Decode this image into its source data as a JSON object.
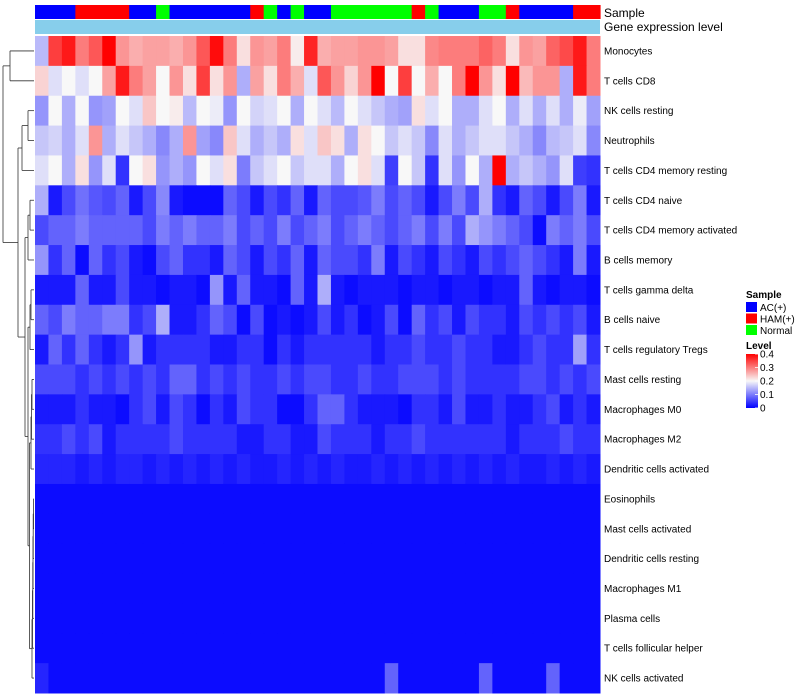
{
  "chart_data": {
    "type": "heatmap",
    "title": "",
    "annotation_labels": {
      "sample": "Sample",
      "expression": "Gene expression level"
    },
    "sample_groups": [
      "AC(+)",
      "AC(+)",
      "AC(+)",
      "HAM(+)",
      "HAM(+)",
      "HAM(+)",
      "HAM(+)",
      "AC(+)",
      "AC(+)",
      "Normal",
      "AC(+)",
      "AC(+)",
      "AC(+)",
      "AC(+)",
      "AC(+)",
      "AC(+)",
      "HAM(+)",
      "Normal",
      "AC(+)",
      "Normal",
      "AC(+)",
      "AC(+)",
      "Normal",
      "Normal",
      "Normal",
      "Normal",
      "Normal",
      "Normal",
      "HAM(+)",
      "Normal",
      "AC(+)",
      "AC(+)",
      "AC(+)",
      "Normal",
      "Normal",
      "HAM(+)",
      "AC(+)",
      "AC(+)",
      "AC(+)",
      "AC(+)",
      "HAM(+)",
      "HAM(+)"
    ],
    "rows": [
      "Monocytes",
      "T cells CD8",
      "NK cells resting",
      "Neutrophils",
      "T cells CD4 memory resting",
      "T cells CD4 naive",
      "T cells CD4 memory activated",
      "B cells memory",
      "T cells gamma delta",
      "B cells naive",
      "T cells regulatory  Tregs",
      "Mast cells resting",
      "Macrophages M0",
      "Macrophages M2",
      "Dendritic cells activated",
      "Eosinophils",
      "Mast cells activated",
      "Dendritic cells resting",
      "Macrophages M1",
      "Plasma cells",
      "T cells follicular helper",
      "NK cells activated"
    ],
    "values": [
      [
        0.15,
        0.35,
        0.38,
        0.3,
        0.33,
        0.4,
        0.28,
        0.26,
        0.27,
        0.27,
        0.26,
        0.28,
        0.33,
        0.39,
        0.3,
        0.22,
        0.28,
        0.27,
        0.3,
        0.21,
        0.37,
        0.26,
        0.27,
        0.27,
        0.28,
        0.28,
        0.27,
        0.22,
        0.22,
        0.29,
        0.3,
        0.3,
        0.3,
        0.32,
        0.3,
        0.22,
        0.28,
        0.27,
        0.32,
        0.34,
        0.38,
        0.3
      ],
      [
        0.23,
        0.18,
        0.2,
        0.18,
        0.2,
        0.27,
        0.38,
        0.3,
        0.27,
        0.2,
        0.28,
        0.22,
        0.35,
        0.22,
        0.28,
        0.14,
        0.27,
        0.22,
        0.3,
        0.26,
        0.18,
        0.33,
        0.28,
        0.23,
        0.28,
        0.4,
        0.2,
        0.35,
        0.2,
        0.26,
        0.2,
        0.3,
        0.4,
        0.28,
        0.22,
        0.4,
        0.25,
        0.28,
        0.28,
        0.14,
        0.38,
        0.3
      ],
      [
        0.12,
        0.2,
        0.14,
        0.2,
        0.12,
        0.13,
        0.2,
        0.18,
        0.24,
        0.2,
        0.21,
        0.15,
        0.2,
        0.19,
        0.12,
        0.2,
        0.17,
        0.18,
        0.2,
        0.14,
        0.2,
        0.18,
        0.15,
        0.2,
        0.18,
        0.16,
        0.14,
        0.13,
        0.22,
        0.18,
        0.2,
        0.14,
        0.14,
        0.18,
        0.2,
        0.14,
        0.18,
        0.14,
        0.18,
        0.14,
        0.19,
        0.13
      ],
      [
        0.16,
        0.17,
        0.14,
        0.18,
        0.28,
        0.14,
        0.18,
        0.16,
        0.14,
        0.11,
        0.14,
        0.28,
        0.13,
        0.11,
        0.24,
        0.18,
        0.14,
        0.16,
        0.14,
        0.22,
        0.18,
        0.24,
        0.22,
        0.14,
        0.22,
        0.2,
        0.16,
        0.18,
        0.16,
        0.11,
        0.18,
        0.14,
        0.16,
        0.18,
        0.18,
        0.16,
        0.14,
        0.11,
        0.15,
        0.16,
        0.18,
        0.11
      ],
      [
        0.18,
        0.2,
        0.14,
        0.22,
        0.12,
        0.18,
        0.04,
        0.2,
        0.22,
        0.12,
        0.14,
        0.12,
        0.2,
        0.18,
        0.22,
        0.1,
        0.16,
        0.18,
        0.2,
        0.16,
        0.18,
        0.18,
        0.14,
        0.2,
        0.22,
        0.18,
        0.05,
        0.2,
        0.16,
        0.04,
        0.18,
        0.12,
        0.2,
        0.14,
        0.4,
        0.14,
        0.16,
        0.14,
        0.12,
        0.18,
        0.05,
        0.04
      ],
      [
        0.14,
        0.02,
        0.06,
        0.09,
        0.07,
        0.06,
        0.08,
        0.02,
        0.06,
        0.11,
        0.02,
        0.01,
        0.01,
        0.01,
        0.08,
        0.06,
        0.02,
        0.06,
        0.04,
        0.08,
        0.02,
        0.08,
        0.06,
        0.06,
        0.07,
        0.1,
        0.06,
        0.08,
        0.06,
        0.02,
        0.06,
        0.1,
        0.06,
        0.14,
        0.04,
        0.02,
        0.08,
        0.06,
        0.02,
        0.06,
        0.1,
        0.02
      ],
      [
        0.06,
        0.08,
        0.08,
        0.1,
        0.08,
        0.08,
        0.08,
        0.08,
        0.06,
        0.1,
        0.08,
        0.1,
        0.08,
        0.08,
        0.1,
        0.06,
        0.08,
        0.06,
        0.1,
        0.06,
        0.08,
        0.1,
        0.06,
        0.08,
        0.1,
        0.08,
        0.06,
        0.08,
        0.1,
        0.06,
        0.1,
        0.06,
        0.14,
        0.12,
        0.1,
        0.08,
        0.06,
        0.01,
        0.1,
        0.08,
        0.1,
        0.06
      ],
      [
        0.12,
        0.04,
        0.08,
        0.01,
        0.08,
        0.04,
        0.06,
        0.02,
        0.01,
        0.06,
        0.08,
        0.04,
        0.04,
        0.02,
        0.08,
        0.06,
        0.02,
        0.06,
        0.04,
        0.08,
        0.02,
        0.08,
        0.06,
        0.06,
        0.04,
        0.1,
        0.02,
        0.06,
        0.04,
        0.02,
        0.06,
        0.04,
        0.02,
        0.06,
        0.04,
        0.06,
        0.08,
        0.06,
        0.04,
        0.02,
        0.1,
        0.02
      ],
      [
        0.02,
        0.02,
        0.02,
        0.08,
        0.02,
        0.02,
        0.06,
        0.02,
        0.02,
        0.01,
        0.02,
        0.02,
        0.01,
        0.12,
        0.02,
        0.08,
        0.02,
        0.02,
        0.01,
        0.08,
        0.02,
        0.14,
        0.02,
        0.01,
        0.02,
        0.02,
        0.02,
        0.01,
        0.02,
        0.02,
        0.01,
        0.02,
        0.02,
        0.01,
        0.02,
        0.02,
        0.08,
        0.02,
        0.01,
        0.02,
        0.02,
        0.01
      ],
      [
        0.08,
        0.06,
        0.1,
        0.08,
        0.08,
        0.1,
        0.1,
        0.04,
        0.06,
        0.14,
        0.02,
        0.02,
        0.04,
        0.08,
        0.06,
        0.01,
        0.06,
        0.01,
        0.02,
        0.01,
        0.02,
        0.06,
        0.02,
        0.04,
        0.01,
        0.02,
        0.06,
        0.01,
        0.08,
        0.04,
        0.06,
        0.02,
        0.06,
        0.04,
        0.04,
        0.02,
        0.06,
        0.04,
        0.06,
        0.04,
        0.06,
        0.02
      ],
      [
        0.02,
        0.08,
        0.04,
        0.08,
        0.04,
        0.02,
        0.04,
        0.12,
        0.02,
        0.04,
        0.04,
        0.04,
        0.04,
        0.02,
        0.02,
        0.04,
        0.04,
        0.01,
        0.04,
        0.02,
        0.04,
        0.04,
        0.04,
        0.04,
        0.04,
        0.02,
        0.04,
        0.04,
        0.06,
        0.04,
        0.04,
        0.06,
        0.04,
        0.04,
        0.02,
        0.02,
        0.04,
        0.06,
        0.04,
        0.04,
        0.13,
        0.04
      ],
      [
        0.06,
        0.06,
        0.06,
        0.04,
        0.06,
        0.04,
        0.06,
        0.04,
        0.06,
        0.04,
        0.08,
        0.08,
        0.04,
        0.06,
        0.04,
        0.06,
        0.04,
        0.04,
        0.06,
        0.04,
        0.06,
        0.06,
        0.04,
        0.04,
        0.06,
        0.04,
        0.04,
        0.06,
        0.06,
        0.06,
        0.04,
        0.06,
        0.04,
        0.04,
        0.04,
        0.04,
        0.06,
        0.06,
        0.04,
        0.06,
        0.04,
        0.06
      ],
      [
        0.02,
        0.02,
        0.02,
        0.04,
        0.02,
        0.02,
        0.01,
        0.04,
        0.06,
        0.02,
        0.06,
        0.04,
        0.01,
        0.04,
        0.02,
        0.06,
        0.04,
        0.04,
        0.01,
        0.01,
        0.04,
        0.08,
        0.08,
        0.04,
        0.02,
        0.02,
        0.02,
        0.01,
        0.04,
        0.04,
        0.02,
        0.06,
        0.02,
        0.02,
        0.04,
        0.02,
        0.02,
        0.04,
        0.06,
        0.02,
        0.04,
        0.02
      ],
      [
        0.04,
        0.04,
        0.06,
        0.04,
        0.06,
        0.02,
        0.04,
        0.04,
        0.04,
        0.04,
        0.06,
        0.04,
        0.04,
        0.04,
        0.04,
        0.02,
        0.02,
        0.04,
        0.04,
        0.02,
        0.02,
        0.06,
        0.04,
        0.04,
        0.04,
        0.02,
        0.04,
        0.04,
        0.06,
        0.04,
        0.04,
        0.04,
        0.04,
        0.04,
        0.04,
        0.02,
        0.04,
        0.04,
        0.04,
        0.06,
        0.04,
        0.04
      ],
      [
        0.03,
        0.03,
        0.03,
        0.02,
        0.03,
        0.02,
        0.03,
        0.03,
        0.02,
        0.03,
        0.02,
        0.03,
        0.02,
        0.03,
        0.02,
        0.03,
        0.02,
        0.02,
        0.03,
        0.02,
        0.03,
        0.02,
        0.03,
        0.02,
        0.02,
        0.03,
        0.02,
        0.03,
        0.02,
        0.03,
        0.02,
        0.03,
        0.02,
        0.03,
        0.02,
        0.03,
        0.02,
        0.02,
        0.03,
        0.02,
        0.03,
        0.02
      ],
      [
        0.01,
        0.01,
        0.01,
        0.01,
        0.01,
        0.01,
        0.01,
        0.01,
        0.01,
        0.01,
        0.01,
        0.01,
        0.01,
        0.01,
        0.01,
        0.01,
        0.01,
        0.01,
        0.01,
        0.01,
        0.01,
        0.01,
        0.01,
        0.01,
        0.01,
        0.01,
        0.01,
        0.01,
        0.01,
        0.01,
        0.01,
        0.01,
        0.01,
        0.01,
        0.01,
        0.01,
        0.01,
        0.01,
        0.01,
        0.01,
        0.01,
        0.01
      ],
      [
        0.01,
        0.01,
        0.01,
        0.01,
        0.01,
        0.01,
        0.01,
        0.01,
        0.01,
        0.01,
        0.01,
        0.01,
        0.01,
        0.01,
        0.01,
        0.01,
        0.01,
        0.01,
        0.01,
        0.01,
        0.01,
        0.01,
        0.01,
        0.01,
        0.01,
        0.01,
        0.01,
        0.01,
        0.01,
        0.01,
        0.01,
        0.01,
        0.01,
        0.01,
        0.01,
        0.01,
        0.01,
        0.01,
        0.01,
        0.01,
        0.01,
        0.01
      ],
      [
        0.01,
        0.01,
        0.01,
        0.01,
        0.01,
        0.01,
        0.01,
        0.01,
        0.01,
        0.01,
        0.01,
        0.01,
        0.01,
        0.01,
        0.01,
        0.01,
        0.01,
        0.01,
        0.01,
        0.01,
        0.01,
        0.01,
        0.01,
        0.01,
        0.01,
        0.01,
        0.01,
        0.01,
        0.01,
        0.01,
        0.01,
        0.01,
        0.01,
        0.01,
        0.01,
        0.01,
        0.01,
        0.01,
        0.01,
        0.01,
        0.01,
        0.01
      ],
      [
        0.01,
        0.01,
        0.01,
        0.01,
        0.01,
        0.01,
        0.01,
        0.01,
        0.01,
        0.01,
        0.01,
        0.01,
        0.01,
        0.01,
        0.01,
        0.01,
        0.01,
        0.01,
        0.01,
        0.01,
        0.01,
        0.01,
        0.01,
        0.01,
        0.01,
        0.01,
        0.01,
        0.01,
        0.01,
        0.01,
        0.01,
        0.01,
        0.01,
        0.01,
        0.01,
        0.01,
        0.01,
        0.01,
        0.01,
        0.01,
        0.01,
        0.01
      ],
      [
        0.01,
        0.01,
        0.01,
        0.01,
        0.01,
        0.01,
        0.01,
        0.01,
        0.01,
        0.01,
        0.01,
        0.01,
        0.01,
        0.01,
        0.01,
        0.01,
        0.01,
        0.01,
        0.01,
        0.01,
        0.01,
        0.01,
        0.01,
        0.01,
        0.01,
        0.01,
        0.01,
        0.01,
        0.01,
        0.01,
        0.01,
        0.01,
        0.01,
        0.01,
        0.01,
        0.01,
        0.01,
        0.01,
        0.01,
        0.01,
        0.01,
        0.01
      ],
      [
        0.01,
        0.01,
        0.01,
        0.01,
        0.01,
        0.01,
        0.01,
        0.01,
        0.01,
        0.01,
        0.01,
        0.01,
        0.01,
        0.01,
        0.01,
        0.01,
        0.01,
        0.01,
        0.01,
        0.01,
        0.01,
        0.01,
        0.01,
        0.01,
        0.01,
        0.01,
        0.01,
        0.01,
        0.01,
        0.01,
        0.01,
        0.01,
        0.01,
        0.01,
        0.01,
        0.01,
        0.01,
        0.01,
        0.01,
        0.01,
        0.01,
        0.01
      ],
      [
        0.03,
        0.01,
        0.01,
        0.01,
        0.01,
        0.01,
        0.01,
        0.01,
        0.01,
        0.01,
        0.01,
        0.01,
        0.01,
        0.01,
        0.01,
        0.01,
        0.01,
        0.01,
        0.01,
        0.01,
        0.01,
        0.01,
        0.01,
        0.01,
        0.01,
        0.01,
        0.08,
        0.01,
        0.01,
        0.01,
        0.01,
        0.01,
        0.01,
        0.08,
        0.01,
        0.01,
        0.01,
        0.01,
        0.08,
        0.01,
        0.01,
        0.01
      ]
    ],
    "color_scale": {
      "min": 0,
      "mid": 0.2,
      "max": 0.4,
      "low": "#0000FF",
      "mid_color": "#F8F8F8",
      "high": "#FF0000"
    },
    "group_colors": {
      "AC(+)": "#0000FF",
      "HAM(+)": "#FF0000",
      "Normal": "#00FF00"
    },
    "expression_bar_color": "#87CEEB",
    "legend": {
      "sample_title": "Sample",
      "groups": [
        "AC(+)",
        "HAM(+)",
        "Normal"
      ],
      "level_title": "Level",
      "level_ticks": [
        "0.4",
        "0.3",
        "0.2",
        "0.1",
        "0"
      ],
      "level_tick_values": [
        0.4,
        0.3,
        0.2,
        0.1,
        0.0
      ]
    }
  }
}
